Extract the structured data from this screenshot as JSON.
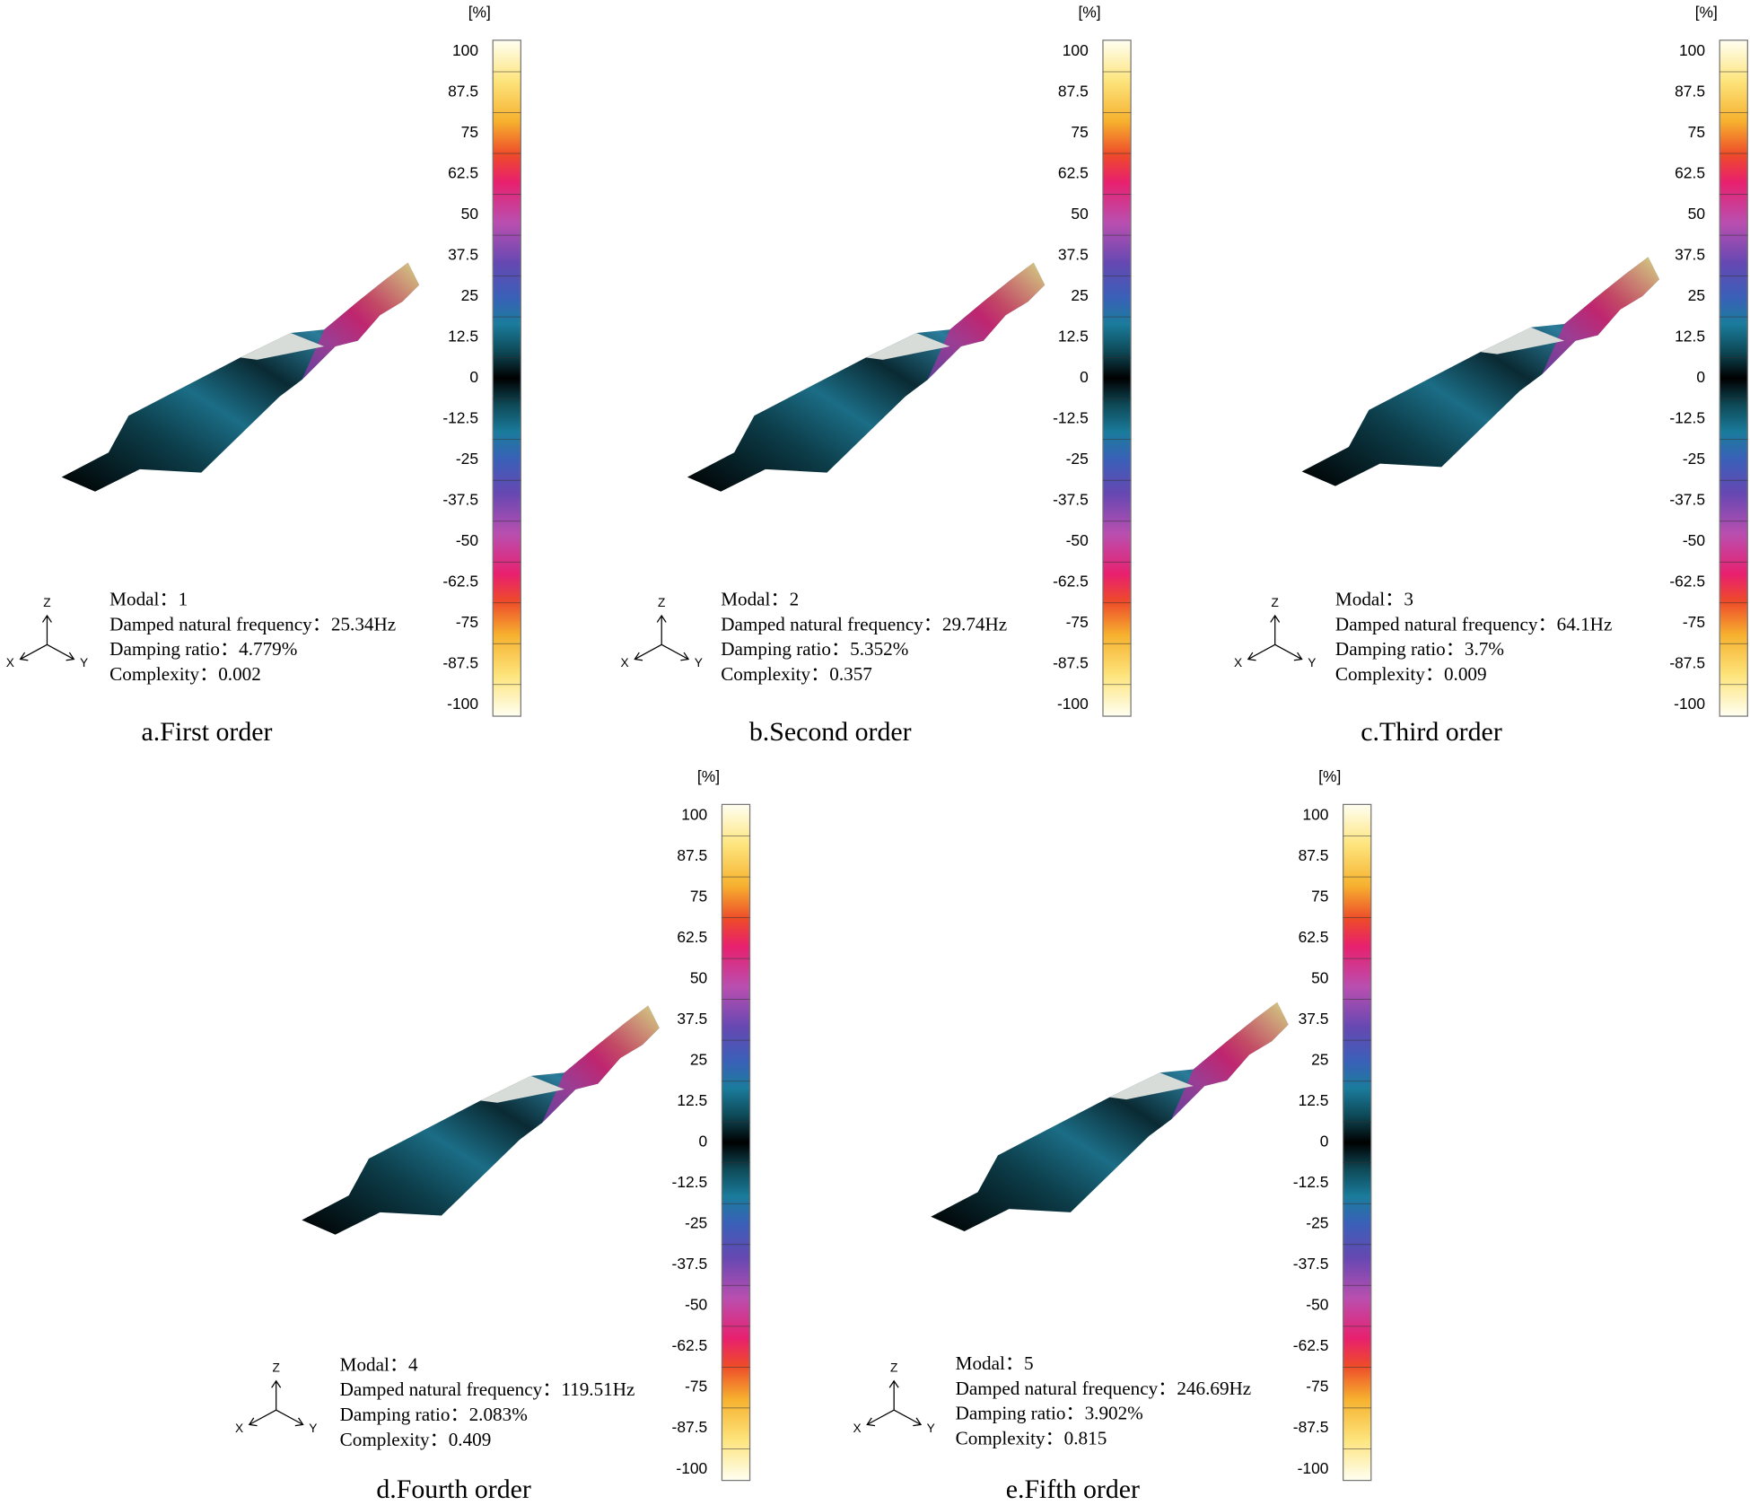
{
  "colorbar": {
    "unit": "[%]",
    "ticks": [
      100,
      87.5,
      75,
      62.5,
      50,
      37.5,
      25,
      12.5,
      0,
      -12.5,
      -25,
      -37.5,
      -50,
      -62.5,
      -75,
      -87.5,
      -100
    ]
  },
  "triad": {
    "x": "X",
    "y": "Y",
    "z": "Z"
  },
  "panels": [
    {
      "lines": [
        "Modal：1",
        "Damped natural frequency：25.34Hz",
        "Damping ratio：4.779%",
        "Complexity：0.002"
      ],
      "caption": "a.First order"
    },
    {
      "lines": [
        "Modal：2",
        "Damped natural frequency：29.74Hz",
        "Damping ratio：5.352%",
        "Complexity：0.357"
      ],
      "caption": "b.Second order"
    },
    {
      "lines": [
        "Modal：3",
        "Damped natural frequency：64.1Hz",
        "Damping ratio：3.7%",
        "Complexity：0.009"
      ],
      "caption": "c.Third order"
    },
    {
      "lines": [
        "Modal：4",
        "Damped natural frequency：119.51Hz",
        "Damping ratio：2.083%",
        "Complexity：0.409"
      ],
      "caption": "d.Fourth order"
    },
    {
      "lines": [
        "Modal：5",
        "Damped natural frequency：246.69Hz",
        "Damping ratio：3.902%",
        "Complexity：0.815"
      ],
      "caption": "e.Fifth order"
    }
  ]
}
